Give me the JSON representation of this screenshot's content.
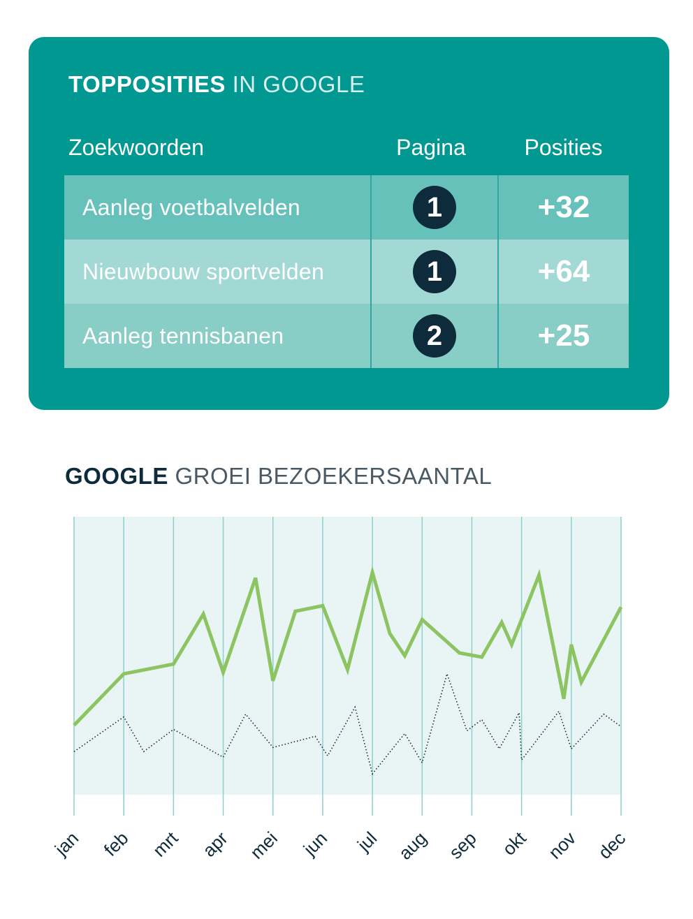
{
  "card": {
    "title_bold": "TOPPOSITIES",
    "title_light": "IN GOOGLE",
    "headers": {
      "keywords": "Zoekwoorden",
      "page": "Pagina",
      "positions": "Posities"
    },
    "rows": [
      {
        "keyword": "Aanleg voetbalvelden",
        "page": "1",
        "positions": "+32"
      },
      {
        "keyword": "Nieuwbouw sportvelden",
        "page": "1",
        "positions": "+64"
      },
      {
        "keyword": "Aanleg tennisbanen",
        "page": "2",
        "positions": "+25"
      }
    ]
  },
  "chart_title": {
    "bold": "GOOGLE",
    "light": "GROEI BEZOEKERSAANTAL"
  },
  "chart_data": {
    "type": "line",
    "title": "GOOGLE GROEI BEZOEKERSAANTAL",
    "categories": [
      "jan",
      "feb",
      "mrt",
      "apr",
      "mei",
      "jun",
      "jul",
      "aug",
      "sep",
      "okt",
      "nov",
      "dec"
    ],
    "xlim": [
      0,
      11
    ],
    "ylim": [
      0,
      100
    ],
    "grid": true,
    "legend": "none",
    "series": [
      {
        "style": "solid",
        "color": "#8dc462",
        "x": [
          0,
          1,
          2,
          2.6,
          3,
          3.65,
          4,
          4.45,
          5,
          5.5,
          6,
          6.35,
          6.65,
          7,
          7.75,
          8.2,
          8.6,
          8.8,
          9.35,
          9.85,
          10,
          10.2,
          11
        ],
        "y": [
          25,
          43.5,
          47,
          65,
          44,
          78,
          41,
          66,
          68,
          45,
          80,
          58,
          50,
          63,
          51,
          49.5,
          62,
          54,
          79,
          34.5,
          54,
          40.5,
          67.5
        ]
      },
      {
        "style": "dotted",
        "color": "#0e2b3b",
        "x": [
          0,
          1,
          1.4,
          2,
          3,
          3.45,
          4,
          4.85,
          5.1,
          5.65,
          6,
          6.65,
          7,
          7.5,
          7.9,
          8.2,
          8.55,
          8.95,
          9,
          9.75,
          10,
          10.65,
          11
        ],
        "y": [
          15.5,
          28,
          15.5,
          23.5,
          13.5,
          29,
          17,
          21,
          14,
          31.5,
          7.5,
          22,
          11.5,
          43.5,
          23,
          27,
          16.5,
          29.5,
          12.5,
          30,
          16.5,
          29,
          24.5
        ]
      }
    ]
  },
  "colors": {
    "card_bg": "#009890",
    "row_1": "#66c1bb",
    "row_2": "#a2d9d4",
    "row_3": "#89cdc7",
    "badge": "#0e2b3b",
    "plot_bg": "#e9f5f4",
    "gridline": "#8dd0cb",
    "solid_line": "#8dc462",
    "dotted_line": "#0e2b3b"
  }
}
